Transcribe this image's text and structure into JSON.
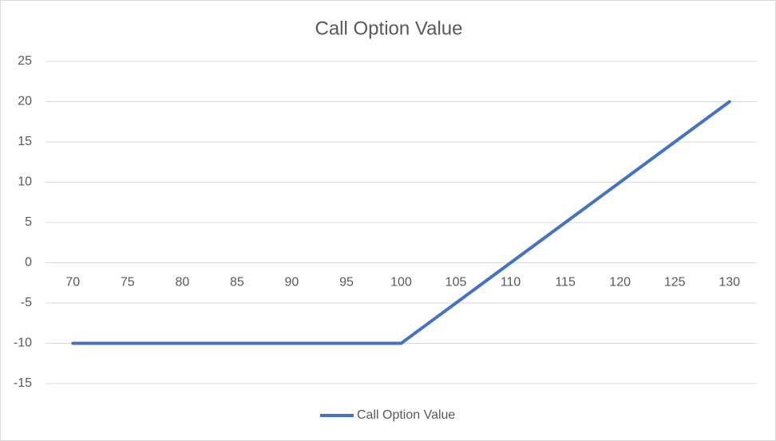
{
  "chart_data": {
    "type": "line",
    "title": "Call Option Value",
    "categories": [
      "70",
      "75",
      "80",
      "85",
      "90",
      "95",
      "100",
      "105",
      "110",
      "115",
      "120",
      "125",
      "130"
    ],
    "series": [
      {
        "name": "Call Option Value",
        "color": "#4472c4",
        "values": [
          -10,
          -10,
          -10,
          -10,
          -10,
          -10,
          -10,
          -5,
          0,
          5,
          10,
          15,
          20
        ]
      }
    ],
    "ylim": [
      -15,
      25
    ],
    "yticks": [
      -15,
      -10,
      -5,
      0,
      5,
      10,
      15,
      20,
      25
    ],
    "grid": true,
    "legend": "bottom"
  }
}
